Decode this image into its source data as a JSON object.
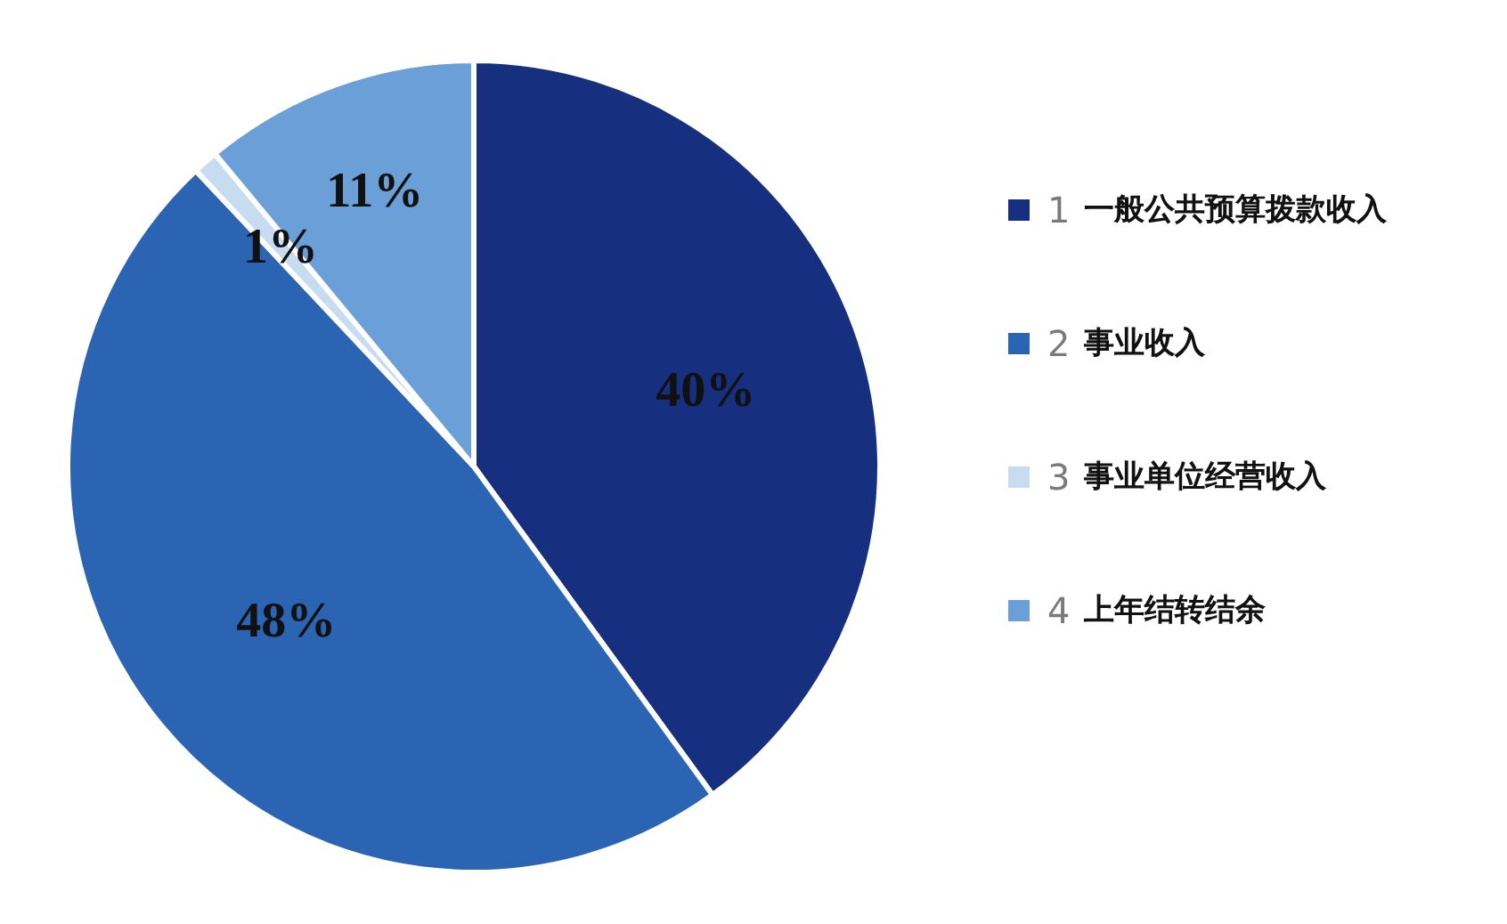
{
  "chart_data": {
    "type": "pie",
    "categories": [
      "1 一般公共预算拨款收入",
      "2 事业收入",
      "3 事业单位经营收入",
      "4 上年结转结余"
    ],
    "values": [
      40,
      48,
      1,
      11
    ],
    "colors": [
      "#16307f",
      "#2a64b3",
      "#c8dcf0",
      "#6a9fd8"
    ],
    "value_labels": [
      "40%",
      "48%",
      "1%",
      "11%"
    ],
    "legend": "right"
  }
}
